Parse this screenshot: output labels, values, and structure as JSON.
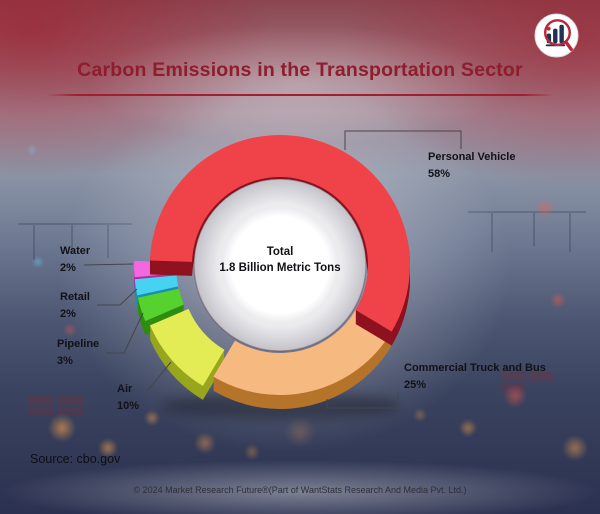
{
  "page": {
    "title": "Carbon Emissions in the Transportation Sector",
    "source": "Source: cbo.gov",
    "footer": "© 2024 Market Research Future®(Part of WantStats Research And Media Pvt. Ltd.)",
    "logo_name": "market-research-future-logo"
  },
  "chart_data": {
    "type": "pie",
    "donut": true,
    "title": "Carbon Emissions in the Transportation Sector",
    "center_label": "Total",
    "center_value": "1.8 Billion Metric Tons",
    "unit": "%",
    "source": "cbo.gov",
    "start_angle_deg": 272,
    "slices": [
      {
        "label": "Personal Vehicle",
        "value": 58,
        "pct_label": "58%",
        "color": "#ef4349",
        "dark": "#8e1220",
        "explode": 0
      },
      {
        "label": "Commercial Truck and Bus",
        "value": 25,
        "pct_label": "25%",
        "color": "#f6ba81",
        "dark": "#b5742a",
        "explode": 0
      },
      {
        "label": "Air",
        "value": 10,
        "pct_label": "10%",
        "color": "#e3ec55",
        "dark": "#98a61e",
        "explode": 14
      },
      {
        "label": "Pipeline",
        "value": 3,
        "pct_label": "3%",
        "color": "#55d22d",
        "dark": "#2e8d12",
        "explode": 16
      },
      {
        "label": "Retail",
        "value": 2,
        "pct_label": "2%",
        "color": "#47d2f2",
        "dark": "#1b8fb0",
        "explode": 16
      },
      {
        "label": "Water",
        "value": 2,
        "pct_label": "2%",
        "color": "#f268e0",
        "dark": "#aa2f9e",
        "explode": 16
      }
    ]
  }
}
